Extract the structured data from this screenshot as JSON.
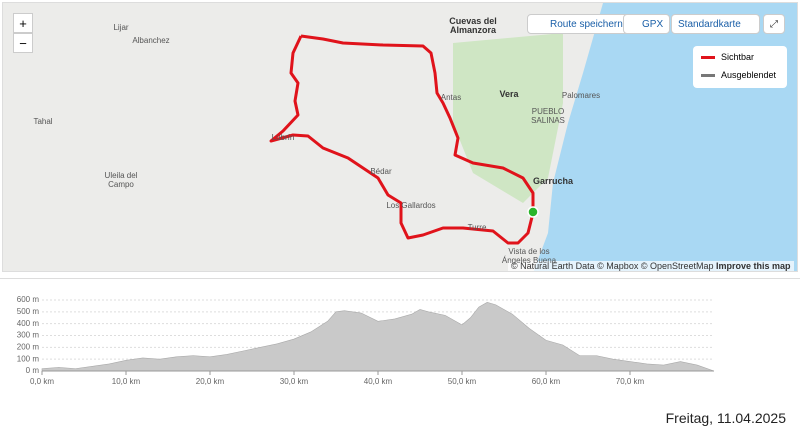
{
  "map": {
    "zoom_in": "+",
    "zoom_out": "−",
    "buttons": [
      "Route speichern",
      "GPX",
      "Standardkarte"
    ],
    "legend": [
      "Sichtbar",
      "Ausgeblendet"
    ],
    "places": [
      "Lijar",
      "Albanchez",
      "Cuevas del Almanzora",
      "Vera",
      "Palomares",
      "PUEBLO SALINAS",
      "Antas",
      "Tahal",
      "Lubrín",
      "Bédar",
      "Garrucha",
      "Uleila del Campo",
      "Los Gallardos",
      "Turre",
      "Vista de los Ángeles Buena"
    ],
    "attribution": "© Natural Earth Data © Mapbox © OpenStreetMap",
    "improve": "Improve this map"
  },
  "chart_data": {
    "type": "area",
    "x": [
      0,
      2,
      4,
      6,
      8,
      10,
      12,
      14,
      16,
      18,
      20,
      22,
      24,
      26,
      28,
      30,
      32,
      34,
      35,
      36,
      38,
      40,
      42,
      44,
      45,
      46,
      48,
      50,
      51,
      52,
      53,
      54,
      56,
      58,
      60,
      62,
      64,
      66,
      68,
      70,
      72,
      74,
      76,
      78,
      80
    ],
    "series": [
      {
        "color": "#c9c9c9",
        "values": [
          20,
          30,
          20,
          40,
          60,
          90,
          110,
          100,
          120,
          130,
          120,
          140,
          170,
          200,
          230,
          270,
          330,
          420,
          500,
          510,
          490,
          420,
          440,
          480,
          520,
          500,
          470,
          390,
          450,
          540,
          580,
          560,
          480,
          360,
          260,
          220,
          130,
          130,
          100,
          80,
          60,
          50,
          80,
          50,
          0
        ]
      }
    ],
    "xlim": [
      0,
      80
    ],
    "xticks": [
      {
        "value": 0,
        "label": "0,0 km"
      },
      {
        "value": 10,
        "label": "10,0 km"
      },
      {
        "value": 20,
        "label": "20,0 km"
      },
      {
        "value": 30,
        "label": "30,0 km"
      },
      {
        "value": 40,
        "label": "40,0 km"
      },
      {
        "value": 50,
        "label": "50,0 km"
      },
      {
        "value": 60,
        "label": "60,0 km"
      },
      {
        "value": 70,
        "label": "70,0 km"
      }
    ],
    "ylim": [
      0,
      600
    ],
    "yticks": [
      {
        "value": 0,
        "label": "0 m"
      },
      {
        "value": 100,
        "label": "100 m"
      },
      {
        "value": 200,
        "label": "200 m"
      },
      {
        "value": 300,
        "label": "300 m"
      },
      {
        "value": 400,
        "label": "400 m"
      },
      {
        "value": 500,
        "label": "500 m"
      },
      {
        "value": 600,
        "label": "600 m"
      }
    ],
    "grid": true
  },
  "date": "Freitag, 11.04.2025"
}
